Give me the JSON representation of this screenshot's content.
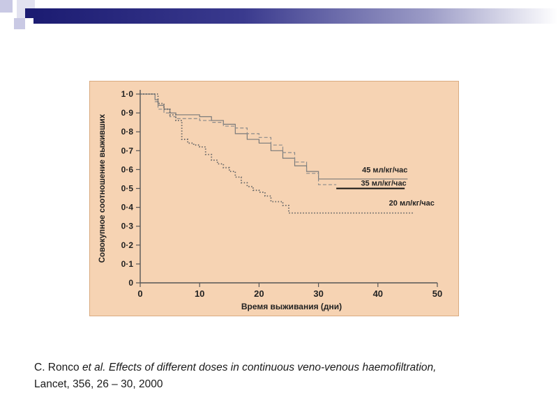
{
  "chart_data": {
    "type": "line",
    "xlabel": "Время выживания (дни)",
    "ylabel": "Совокупное соотношение выживших",
    "xlim": [
      0,
      50
    ],
    "ylim": [
      0,
      1.0
    ],
    "x_ticks": [
      "0",
      "10",
      "20",
      "30",
      "40",
      "50"
    ],
    "y_ticks": [
      "0",
      "0·1",
      "0·2",
      "0·3",
      "0·4",
      "0·5",
      "0·6",
      "0·7",
      "0·8",
      "0·9",
      "1·0"
    ],
    "grid": false,
    "series": [
      {
        "name": "45 мл/кг/час",
        "line_style": "solid-thin",
        "x": [
          0,
          2,
          2.5,
          3,
          4,
          5,
          6,
          8,
          10,
          12,
          14,
          16,
          18,
          20,
          22,
          24,
          26,
          28,
          30,
          45
        ],
        "y": [
          1.0,
          1.0,
          0.97,
          0.94,
          0.92,
          0.9,
          0.89,
          0.89,
          0.88,
          0.86,
          0.84,
          0.79,
          0.76,
          0.74,
          0.7,
          0.66,
          0.62,
          0.59,
          0.55,
          0.55
        ]
      },
      {
        "name": "35 мл/кг/час",
        "line_style": "dashed",
        "x": [
          0,
          2,
          2.5,
          3,
          4,
          5,
          6,
          8,
          10,
          12,
          14,
          16,
          18,
          20,
          22,
          24,
          26,
          28,
          30,
          33
        ],
        "y": [
          1.0,
          1.0,
          0.96,
          0.92,
          0.9,
          0.88,
          0.87,
          0.87,
          0.86,
          0.85,
          0.83,
          0.82,
          0.79,
          0.77,
          0.73,
          0.69,
          0.64,
          0.58,
          0.52,
          0.52
        ]
      },
      {
        "name": "35 мл/кг/час",
        "line_style": "solid-thick",
        "x": [
          33,
          44.5
        ],
        "y": [
          0.5,
          0.5
        ]
      },
      {
        "name": "20 мл/кг/час",
        "line_style": "dotted",
        "x": [
          0,
          2,
          3,
          4,
          5,
          6,
          7,
          8,
          9,
          10,
          11,
          12,
          13,
          14,
          15,
          16,
          17,
          18,
          19,
          20,
          21,
          22,
          24,
          25,
          46
        ],
        "y": [
          1.0,
          1.0,
          0.95,
          0.92,
          0.89,
          0.86,
          0.76,
          0.74,
          0.73,
          0.72,
          0.68,
          0.65,
          0.63,
          0.61,
          0.59,
          0.56,
          0.53,
          0.51,
          0.49,
          0.48,
          0.46,
          0.43,
          0.41,
          0.37,
          0.37
        ]
      }
    ],
    "annotations": [
      "45 мл/кг/час",
      "35 мл/кг/час",
      "20 мл/кг/час"
    ]
  },
  "colors": {
    "background": "#f6d3b3",
    "axis": "#555555",
    "text": "#222222",
    "line_45": "#7a7a7a",
    "line_35": "#8a8a8a",
    "line_20": "#666666",
    "header_bar": "#1c1c72"
  },
  "caption": {
    "authors": "C. Ronco",
    "etal": "et al.",
    "title": "Effects of different doses in continuous veno-venous haemofiltration,",
    "citation": "Lancet, 356, 26 – 30,  2000"
  }
}
